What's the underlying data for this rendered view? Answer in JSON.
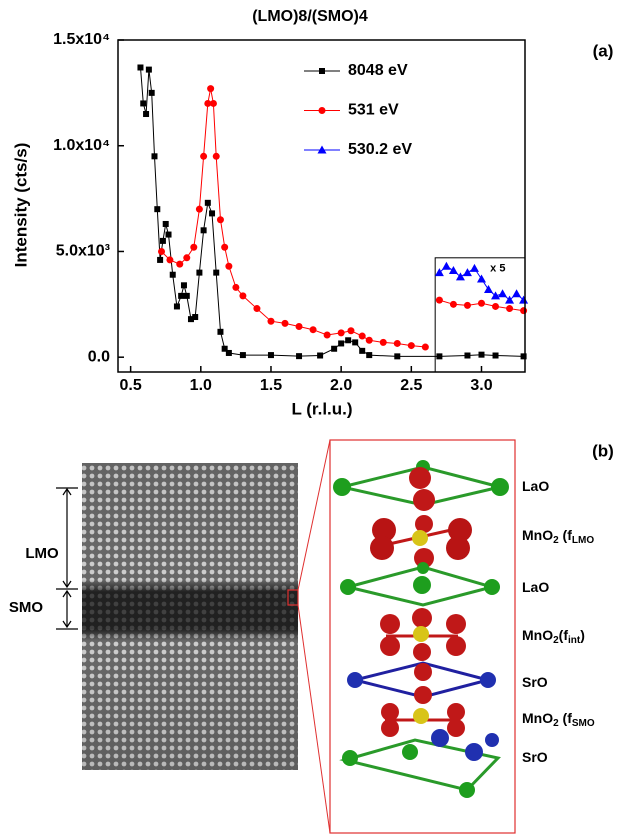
{
  "chart_data": {
    "type": "line",
    "title": "(LMO)8/(SMO)4",
    "panel_label": "(a)",
    "x_label": "L (r.l.u.)",
    "y_label": "Intensity (cts/s)",
    "xlim": [
      0.41,
      3.31
    ],
    "ylim": [
      -700,
      15000
    ],
    "xticks": [
      0.5,
      {
        "value": 1,
        "label": "1.0"
      },
      1.5,
      {
        "value": 2,
        "label": "2.0"
      },
      2.5,
      {
        "value": 3,
        "label": "3.0"
      }
    ],
    "yticks": [
      {
        "value": 0,
        "label": "0.0"
      },
      {
        "value": 5000,
        "label": "5.0x10³"
      },
      {
        "value": 10000,
        "label": "1.0x10⁴"
      },
      {
        "value": 15000,
        "label": "1.5x10⁴"
      }
    ],
    "legend": "upper right",
    "inset": {
      "annotation": "x 5",
      "xlim": [
        2.67,
        3.31
      ],
      "ylim": [
        -700,
        4700
      ]
    },
    "series": [
      {
        "name": "8048 eV",
        "color": "#000000",
        "marker": "square",
        "x": [
          0.57,
          0.59,
          0.61,
          0.63,
          0.65,
          0.67,
          0.69,
          0.71,
          0.73,
          0.75,
          0.77,
          0.8,
          0.83,
          0.86,
          0.88,
          0.9,
          0.93,
          0.96,
          0.99,
          1.02,
          1.05,
          1.08,
          1.11,
          1.14,
          1.17,
          1.2,
          1.3,
          1.5,
          1.7,
          1.85,
          1.95,
          2.0,
          2.05,
          2.1,
          2.15,
          2.2,
          2.4,
          2.7,
          2.9,
          3.0,
          3.1,
          3.3
        ],
        "values": [
          13700,
          12000,
          11500,
          13600,
          12500,
          9500,
          7000,
          4600,
          5500,
          6300,
          5800,
          3900,
          2400,
          2900,
          3400,
          2900,
          1800,
          1900,
          4000,
          6000,
          7300,
          6800,
          4000,
          1200,
          400,
          200,
          100,
          100,
          50,
          80,
          400,
          650,
          800,
          700,
          300,
          100,
          40,
          40,
          80,
          120,
          80,
          40
        ]
      },
      {
        "name": "531 eV",
        "color": "#ff0000",
        "marker": "circle",
        "x": [
          0.72,
          0.78,
          0.85,
          0.9,
          0.95,
          0.99,
          1.02,
          1.05,
          1.07,
          1.09,
          1.11,
          1.14,
          1.17,
          1.2,
          1.25,
          1.3,
          1.4,
          1.5,
          1.6,
          1.7,
          1.8,
          1.9,
          2.0,
          2.07,
          2.15,
          2.2,
          2.3,
          2.4,
          2.5,
          2.6,
          2.67,
          2.7,
          2.8,
          2.9,
          3.0,
          3.1,
          3.2,
          3.3
        ],
        "values": [
          5000,
          4600,
          4400,
          4700,
          5200,
          7000,
          9500,
          12000,
          12700,
          12000,
          9500,
          6500,
          5200,
          4300,
          3300,
          2900,
          2300,
          1700,
          1600,
          1450,
          1300,
          1050,
          1150,
          1250,
          1000,
          800,
          700,
          650,
          550,
          480,
          null,
          2700,
          2500,
          2450,
          2550,
          2400,
          2300,
          2200
        ]
      },
      {
        "name": "530.2 eV",
        "color": "#0000ff",
        "marker": "triangle",
        "x": [
          2.7,
          2.75,
          2.8,
          2.85,
          2.9,
          2.95,
          3.0,
          3.05,
          3.1,
          3.15,
          3.2,
          3.25,
          3.3
        ],
        "values": [
          4000,
          4300,
          4100,
          3800,
          4000,
          4200,
          3700,
          3200,
          2900,
          3000,
          2700,
          3000,
          2700
        ]
      }
    ]
  },
  "panel_b": {
    "label": "(b)",
    "lmo": "LMO",
    "smo": "SMO",
    "layers": [
      {
        "parts": [
          {
            "t": "LaO"
          }
        ]
      },
      {
        "parts": [
          {
            "t": "MnO"
          },
          {
            "t": "2",
            "sub": true
          },
          {
            "t": " (f"
          },
          {
            "t": "LMO",
            "sub": true
          }
        ]
      },
      {
        "parts": [
          {
            "t": "LaO"
          }
        ]
      },
      {
        "parts": [
          {
            "t": "MnO"
          },
          {
            "t": "2",
            "sub": true
          },
          {
            "t": "(f"
          },
          {
            "t": "int",
            "sub": true
          },
          {
            "t": ")"
          }
        ]
      },
      {
        "parts": [
          {
            "t": "SrO"
          }
        ]
      },
      {
        "parts": [
          {
            "t": "MnO"
          },
          {
            "t": "2",
            "sub": true
          },
          {
            "t": " (f"
          },
          {
            "t": "SMO",
            "sub": true
          }
        ]
      },
      {
        "parts": [
          {
            "t": "SrO"
          }
        ]
      }
    ]
  }
}
